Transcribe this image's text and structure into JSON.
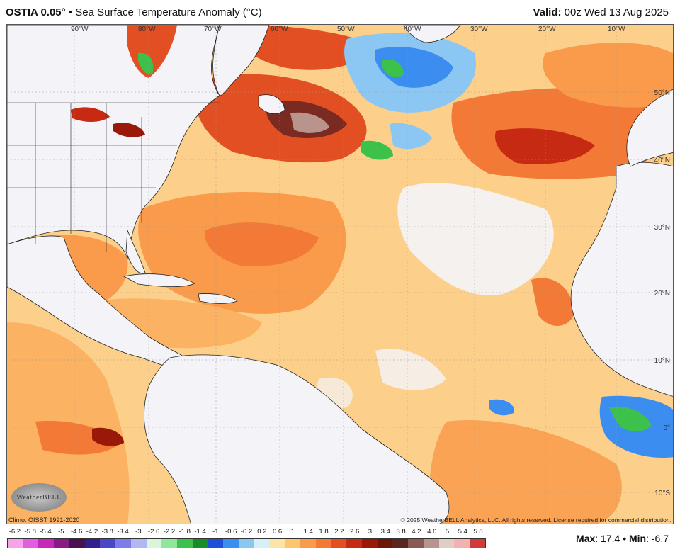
{
  "header": {
    "model": "OSTIA 0.05°",
    "separator": "•",
    "title": "Sea Surface Temperature Anomaly (°C)",
    "valid_label": "Valid:",
    "valid_value": "00z Wed 13 Aug 2025"
  },
  "map": {
    "lon_labels": [
      "90°W",
      "80°W",
      "70°W",
      "60°W",
      "50°W",
      "40°W",
      "30°W",
      "20°W",
      "10°W"
    ],
    "lat_labels": [
      "50°N",
      "40°N",
      "30°N",
      "20°N",
      "10°N",
      "0°",
      "10°S"
    ]
  },
  "footer": {
    "climo": "Climo: OISST 1991-2020",
    "credit": "© 2025 WeatherBELL Analytics, LLC. All rights reserved. License required for commercial distribution.",
    "logo": "WeatherBELL"
  },
  "legend": {
    "labels": [
      "-6.2",
      "-5.8",
      "-5.4",
      "-5",
      "-4.6",
      "-4.2",
      "-3.8",
      "-3.4",
      "-3",
      "-2.6",
      "-2.2",
      "-1.8",
      "-1.4",
      "-1",
      "-0.6",
      "-0.2",
      "0.2",
      "0.6",
      "1",
      "1.4",
      "1.8",
      "2.2",
      "2.6",
      "3",
      "3.4",
      "3.8",
      "4.2",
      "4.6",
      "5",
      "5.4",
      "5.8"
    ],
    "colors": [
      "#f7a3e8",
      "#e45de0",
      "#c828b8",
      "#8a1a86",
      "#4a0e52",
      "#30208e",
      "#4b47c8",
      "#7b7ee8",
      "#b3b6f2",
      "#d9f5dc",
      "#8fe89a",
      "#3cc24a",
      "#1a8a2a",
      "#1d4fd8",
      "#3b8df0",
      "#8cc7f4",
      "#d4f1fa",
      "#fde4a4",
      "#fbc66e",
      "#f99b4b",
      "#f27a36",
      "#e24f22",
      "#c72a12",
      "#9a1808",
      "#6e1508",
      "#5b2620",
      "#8a5a52",
      "#b8948c",
      "#e2ccc6",
      "#f1b2b2",
      "#d23a3a"
    ]
  },
  "stats": {
    "max_label": "Max",
    "max_value": ": 17.4",
    "sep": "•",
    "min_label": "Min",
    "min_value": ": -6.7"
  }
}
